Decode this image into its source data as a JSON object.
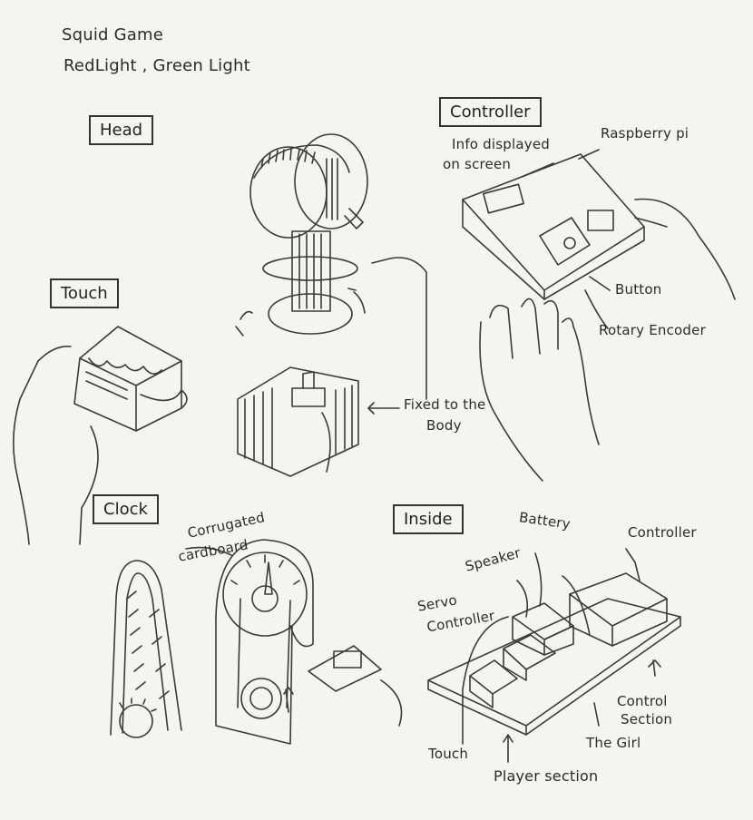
{
  "header": {
    "line1": "Squid Game",
    "line2": "RedLight , Green Light"
  },
  "sections": {
    "head": "Head",
    "controller": "Controller",
    "touch": "Touch",
    "clock": "Clock",
    "inside": "Inside"
  },
  "annotations": {
    "info_displayed_1": "Info displayed",
    "info_displayed_2": "on screen",
    "raspberry_pi": "Raspberry pi",
    "button": "Button",
    "rotary_encoder": "Rotary Encoder",
    "fixed_to_body_1": "Fixed to the",
    "fixed_to_body_2": "Body",
    "corrugated_1": "Corrugated",
    "corrugated_2": "cardboard",
    "battery": "Battery",
    "speaker": "Speaker",
    "controller_part": "Controller",
    "servo_controller_1": "Servo",
    "servo_controller_2": "Controller",
    "control_section_1": "Control",
    "control_section_2": "Section",
    "the_girl": "The Girl",
    "touch_part": "Touch",
    "player_section": "Player section"
  }
}
